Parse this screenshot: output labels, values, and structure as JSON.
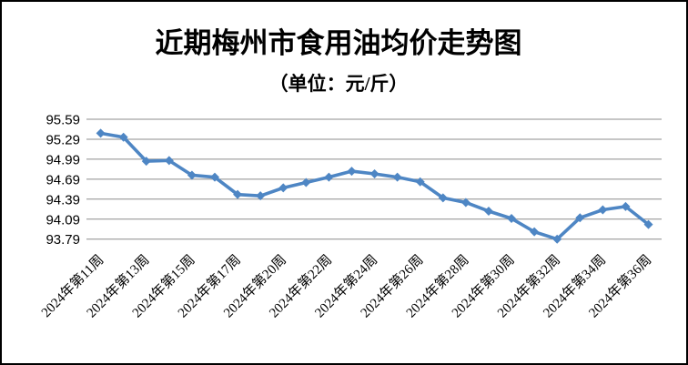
{
  "header": {
    "title": "近期梅州市食用油均价走势图",
    "subtitle": "（单位：元/斤）"
  },
  "chart_data": {
    "type": "line",
    "title": "近期梅州市食用油均价走势图",
    "subtitle": "（单位：元/斤）",
    "unit": "元/斤",
    "y_tick_labels": [
      "95.59",
      "95.29",
      "94.99",
      "94.69",
      "94.39",
      "94.09",
      "93.79"
    ],
    "ylim": [
      93.79,
      95.59
    ],
    "y_step": 0.3,
    "grid": "horizontal-gridlines-only",
    "legend_position": "none",
    "x_labels": [
      "2024年第11周",
      "2024年第13周",
      "2024年第15周",
      "2024年第17周",
      "2024年第20周",
      "2024年第22周",
      "2024年第24周",
      "2024年第26周",
      "2024年第28周",
      "2024年第30周",
      "2024年第32周",
      "2024年第34周",
      "2024年第36周"
    ],
    "label_every_n_points": 2,
    "values": [
      95.38,
      95.32,
      94.96,
      94.97,
      94.75,
      94.72,
      94.46,
      94.44,
      94.56,
      94.64,
      94.72,
      94.81,
      94.77,
      94.72,
      94.65,
      94.41,
      94.34,
      94.21,
      94.1,
      93.9,
      93.79,
      94.11,
      94.23,
      94.28,
      94.01
    ],
    "line_color": "#4E86C4",
    "marker_shape": "diamond",
    "gridline_color": "#8C8C8C",
    "frame_border_color": "#000000",
    "background_color": "#FFFFFF"
  }
}
